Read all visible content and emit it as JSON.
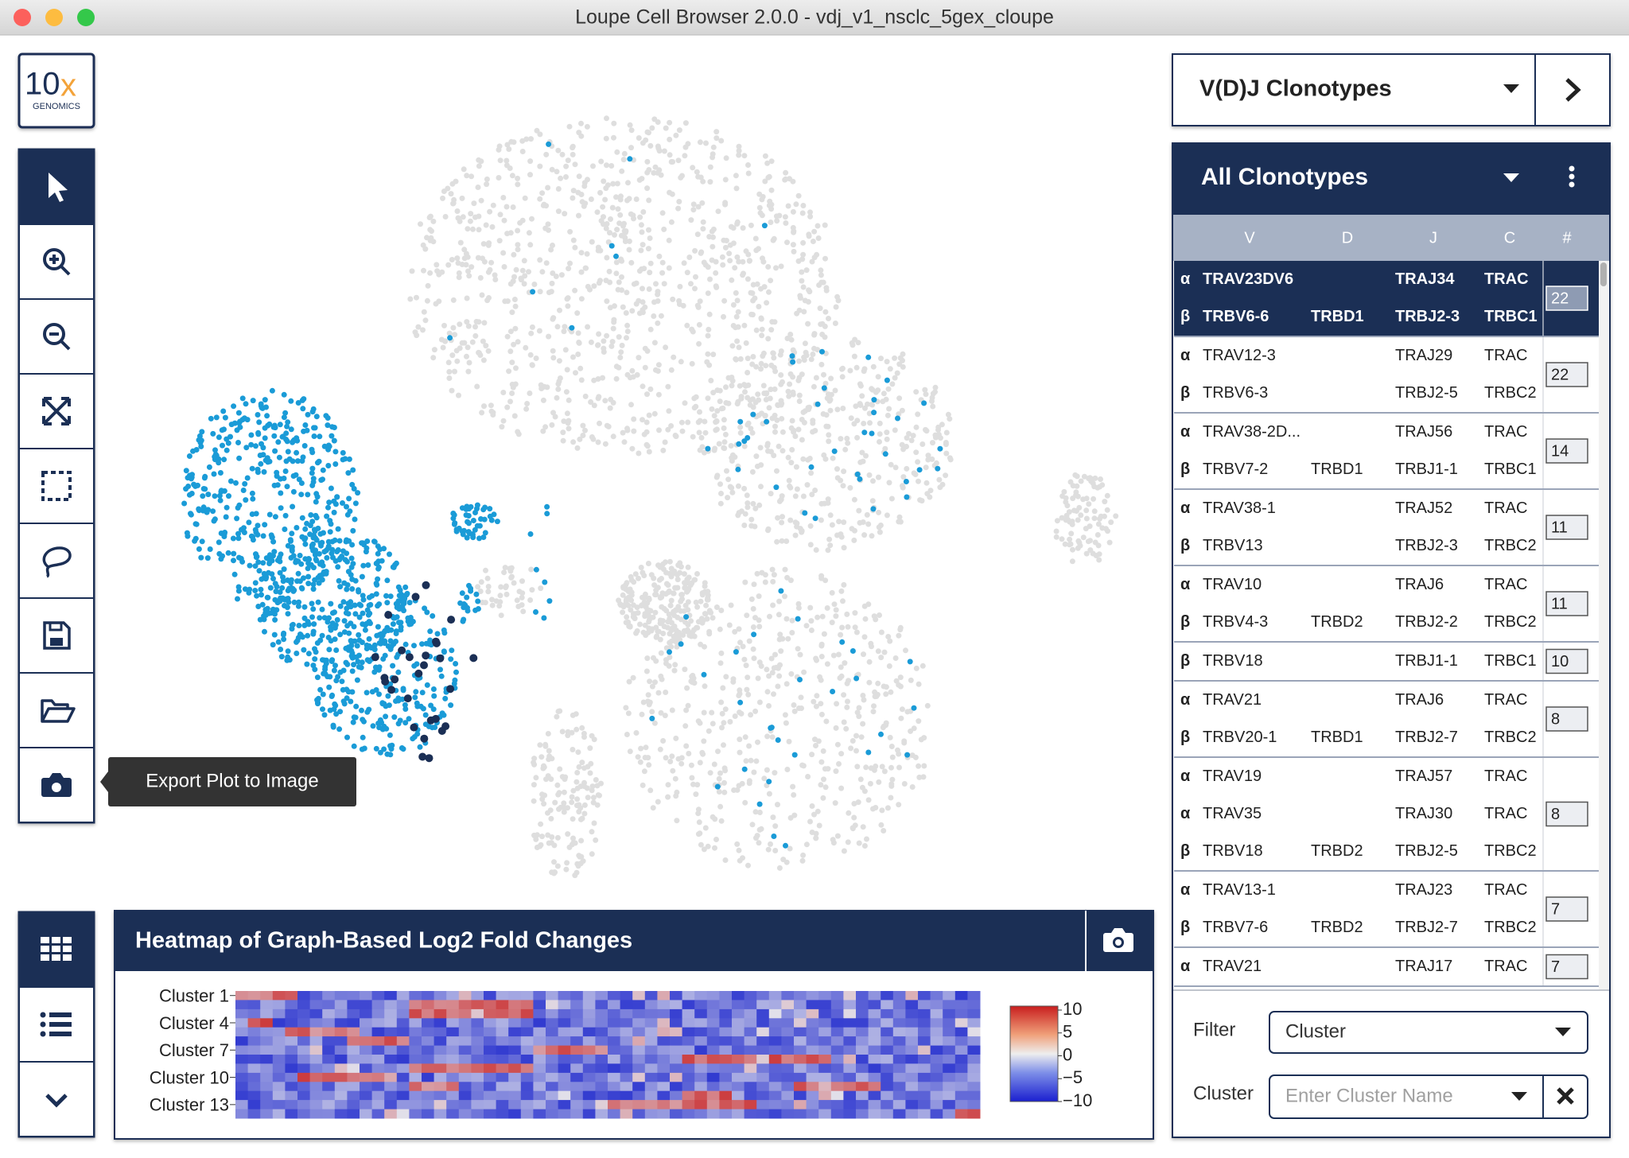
{
  "window": {
    "title": "Loupe Cell Browser 2.0.0 - vdj_v1_nsclc_5gex_cloupe"
  },
  "logo": {
    "mark": "10",
    "mark_x": "x",
    "name": "GENOMICS"
  },
  "tooltip": "Export Plot to Image",
  "heatmap": {
    "title": "Heatmap of Graph-Based Log2 Fold Changes",
    "rows": [
      "Cluster 1",
      "Cluster 4",
      "Cluster 7",
      "Cluster 10",
      "Cluster 13"
    ],
    "scale": [
      "10",
      "5",
      "0",
      "−5",
      "−10"
    ]
  },
  "clonotypes": {
    "selector": "V(D)J Clonotypes",
    "list_title": "All Clonotypes",
    "columns": [
      "V",
      "D",
      "J",
      "C",
      "#"
    ],
    "groups": [
      {
        "count": 22,
        "selected": true,
        "chains": [
          {
            "chain": "α",
            "v": "TRAV23DV6",
            "j": "TRAJ34",
            "c": "TRAC"
          },
          {
            "chain": "β",
            "v": "TRBV6-6",
            "d": "TRBD1",
            "j": "TRBJ2-3",
            "c": "TRBC1"
          }
        ]
      },
      {
        "count": 22,
        "chains": [
          {
            "chain": "α",
            "v": "TRAV12-3",
            "j": "TRAJ29",
            "c": "TRAC"
          },
          {
            "chain": "β",
            "v": "TRBV6-3",
            "j": "TRBJ2-5",
            "c": "TRBC2"
          }
        ]
      },
      {
        "count": 14,
        "chains": [
          {
            "chain": "α",
            "v": "TRAV38-2D...",
            "j": "TRAJ56",
            "c": "TRAC"
          },
          {
            "chain": "β",
            "v": "TRBV7-2",
            "d": "TRBD1",
            "j": "TRBJ1-1",
            "c": "TRBC1"
          }
        ]
      },
      {
        "count": 11,
        "chains": [
          {
            "chain": "α",
            "v": "TRAV38-1",
            "j": "TRAJ52",
            "c": "TRAC"
          },
          {
            "chain": "β",
            "v": "TRBV13",
            "j": "TRBJ2-3",
            "c": "TRBC2"
          }
        ]
      },
      {
        "count": 11,
        "chains": [
          {
            "chain": "α",
            "v": "TRAV10",
            "j": "TRAJ6",
            "c": "TRAC"
          },
          {
            "chain": "β",
            "v": "TRBV4-3",
            "d": "TRBD2",
            "j": "TRBJ2-2",
            "c": "TRBC2"
          }
        ]
      },
      {
        "count": 10,
        "chains": [
          {
            "chain": "β",
            "v": "TRBV18",
            "j": "TRBJ1-1",
            "c": "TRBC1"
          }
        ]
      },
      {
        "count": 8,
        "chains": [
          {
            "chain": "α",
            "v": "TRAV21",
            "j": "TRAJ6",
            "c": "TRAC"
          },
          {
            "chain": "β",
            "v": "TRBV20-1",
            "d": "TRBD1",
            "j": "TRBJ2-7",
            "c": "TRBC2"
          }
        ]
      },
      {
        "count": 8,
        "chains": [
          {
            "chain": "α",
            "v": "TRAV19",
            "j": "TRAJ57",
            "c": "TRAC"
          },
          {
            "chain": "α",
            "v": "TRAV35",
            "j": "TRAJ30",
            "c": "TRAC"
          },
          {
            "chain": "β",
            "v": "TRBV18",
            "d": "TRBD2",
            "j": "TRBJ2-5",
            "c": "TRBC2"
          }
        ]
      },
      {
        "count": 7,
        "chains": [
          {
            "chain": "α",
            "v": "TRAV13-1",
            "j": "TRAJ23",
            "c": "TRAC"
          },
          {
            "chain": "β",
            "v": "TRBV7-6",
            "d": "TRBD2",
            "j": "TRBJ2-7",
            "c": "TRBC2"
          }
        ]
      },
      {
        "count": 7,
        "chains": [
          {
            "chain": "α",
            "v": "TRAV21",
            "j": "TRAJ17",
            "c": "TRAC"
          }
        ]
      }
    ]
  },
  "filter": {
    "label": "Filter",
    "value": "Cluster",
    "cluster_label": "Cluster",
    "placeholder": "Enter Cluster Name"
  }
}
